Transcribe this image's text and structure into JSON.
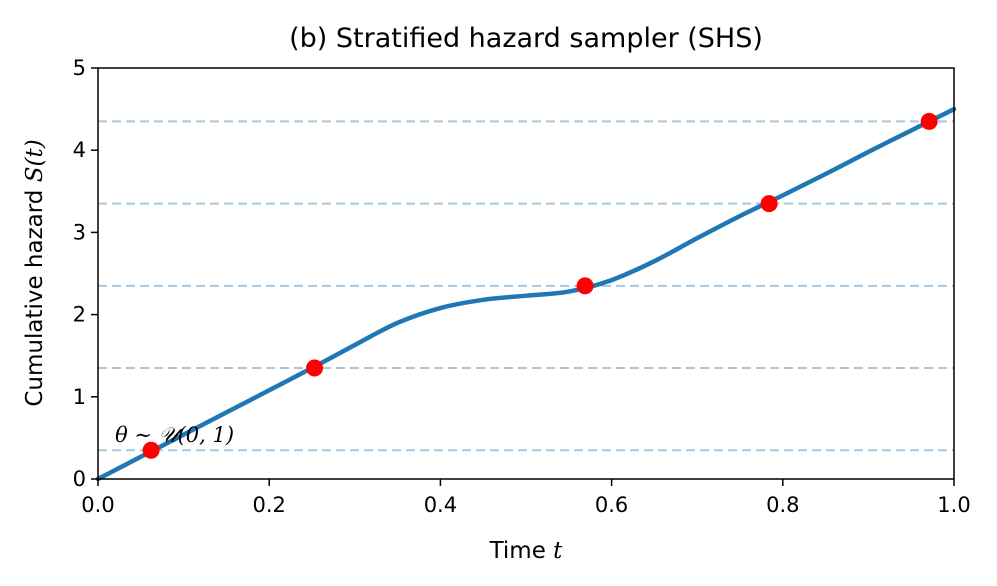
{
  "chart_data": {
    "type": "line",
    "title": "(b) Stratified hazard sampler (SHS)",
    "xlabel": {
      "text": "Time ",
      "var": "t"
    },
    "ylabel": {
      "text": "Cumulative hazard ",
      "var": "S(t)"
    },
    "xlim": [
      0.0,
      1.0
    ],
    "ylim": [
      0,
      5
    ],
    "xticks": [
      0.0,
      0.2,
      0.4,
      0.6,
      0.8,
      1.0
    ],
    "xtick_labels": [
      "0.0",
      "0.2",
      "0.4",
      "0.6",
      "0.8",
      "1.0"
    ],
    "yticks": [
      0,
      1,
      2,
      3,
      4,
      5
    ],
    "ytick_labels": [
      "0",
      "1",
      "2",
      "3",
      "4",
      "5"
    ],
    "grid": false,
    "colors": {
      "curve": "#1f77b4",
      "points": "#ff0000",
      "levels": "#a6c8e0"
    },
    "series": [
      {
        "x": [
          0.0,
          0.05,
          0.1,
          0.15,
          0.2,
          0.25,
          0.3,
          0.35,
          0.4,
          0.45,
          0.5,
          0.55,
          0.6,
          0.65,
          0.7,
          0.75,
          0.8,
          0.85,
          0.9,
          0.95,
          1.0
        ],
        "y": [
          0.0,
          0.27,
          0.54,
          0.81,
          1.08,
          1.35,
          1.63,
          1.9,
          2.08,
          2.18,
          2.23,
          2.28,
          2.42,
          2.65,
          2.93,
          3.2,
          3.45,
          3.71,
          3.98,
          4.24,
          4.5
        ]
      }
    ],
    "levels": [
      0.35,
      1.35,
      2.35,
      3.35,
      4.35
    ],
    "points": [
      {
        "x": 0.062,
        "y": 0.35
      },
      {
        "x": 0.253,
        "y": 1.35
      },
      {
        "x": 0.569,
        "y": 2.35
      },
      {
        "x": 0.784,
        "y": 3.35
      },
      {
        "x": 0.971,
        "y": 4.35
      }
    ],
    "annotation": {
      "text": "θ ∼ 𝒰(0, 1)",
      "x": 0.02,
      "y": 0.45
    }
  }
}
